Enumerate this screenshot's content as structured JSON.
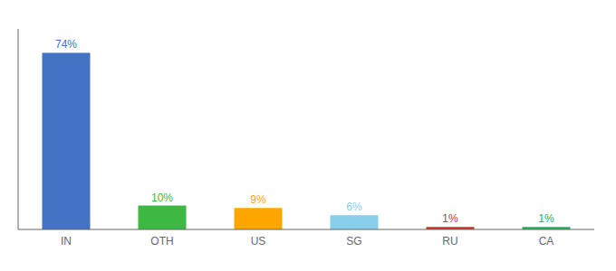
{
  "chart_data": {
    "type": "bar",
    "categories": [
      "IN",
      "OTH",
      "US",
      "SG",
      "RU",
      "CA"
    ],
    "values": [
      74,
      10,
      9,
      6,
      1,
      1
    ],
    "value_labels": [
      "74%",
      "10%",
      "9%",
      "6%",
      "1%",
      "1%"
    ],
    "colors": [
      "#4472C4",
      "#3CB843",
      "#FFA500",
      "#87CEEB",
      "#C0392B",
      "#27AE60"
    ],
    "ylim": [
      0,
      84
    ],
    "data_labels": true,
    "tick_labels": "x",
    "grid": false
  }
}
